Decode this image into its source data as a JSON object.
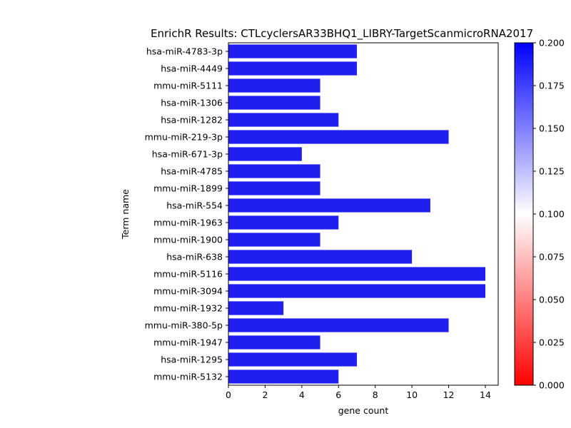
{
  "chart_data": {
    "type": "bar",
    "orientation": "horizontal",
    "title": "EnrichR Results: CTLcyclersAR33BHQ1_LIBRY-TargetScanmicroRNA2017",
    "xlabel": "gene count",
    "ylabel": "Term name",
    "xlim": [
      0,
      14.7
    ],
    "xticks": [
      0,
      2,
      4,
      6,
      8,
      10,
      12,
      14
    ],
    "categories": [
      "hsa-miR-4783-3p",
      "hsa-miR-4449",
      "mmu-miR-5111",
      "hsa-miR-1306",
      "hsa-miR-1282",
      "mmu-miR-219-3p",
      "hsa-miR-671-3p",
      "hsa-miR-4785",
      "mmu-miR-1899",
      "hsa-miR-554",
      "mmu-miR-1963",
      "mmu-miR-1900",
      "hsa-miR-638",
      "mmu-miR-5116",
      "mmu-miR-3094",
      "mmu-miR-1932",
      "mmu-miR-380-5p",
      "mmu-miR-1947",
      "hsa-miR-1295",
      "mmu-miR-5132"
    ],
    "values": [
      7,
      7,
      5,
      5,
      6,
      12,
      4,
      5,
      5,
      11,
      6,
      5,
      10,
      14,
      14,
      3,
      12,
      5,
      7,
      6
    ],
    "bar_color": "#1f1fef",
    "colorbar": {
      "range": [
        0.0,
        0.2
      ],
      "ticks": [
        "0.000",
        "0.025",
        "0.050",
        "0.075",
        "0.100",
        "0.125",
        "0.150",
        "0.175",
        "0.200"
      ],
      "colormap_stops": [
        "#ff0000",
        "#ffffff",
        "#0000ff"
      ]
    }
  }
}
